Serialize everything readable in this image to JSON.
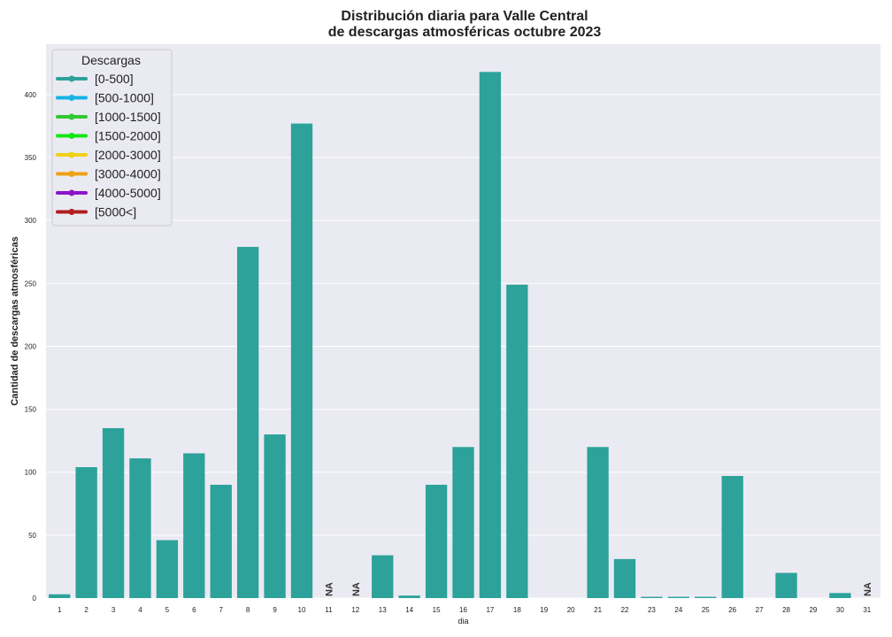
{
  "chart_data": {
    "type": "bar",
    "title_line1": "Distribución diaria para Valle Central",
    "title_line2": "de descargas atmosféricas octubre 2023",
    "xlabel": "dia",
    "ylabel": "Cantidad de descargas atmosféricas",
    "ylim": [
      0,
      440
    ],
    "yticks": [
      0,
      50,
      100,
      150,
      200,
      250,
      300,
      350,
      400
    ],
    "grid": true,
    "background": "#eaeaf2",
    "bar_color": "#2ca29a",
    "categories": [
      "1",
      "2",
      "3",
      "4",
      "5",
      "6",
      "7",
      "8",
      "9",
      "10",
      "11",
      "12",
      "13",
      "14",
      "15",
      "16",
      "17",
      "18",
      "19",
      "20",
      "21",
      "22",
      "23",
      "24",
      "25",
      "26",
      "27",
      "28",
      "29",
      "30",
      "31"
    ],
    "values": [
      3,
      104,
      135,
      111,
      46,
      115,
      90,
      279,
      130,
      377,
      null,
      null,
      34,
      2,
      90,
      120,
      418,
      249,
      0,
      0,
      120,
      31,
      1,
      1,
      1,
      97,
      0,
      20,
      0,
      4,
      null
    ],
    "na_label": "NA",
    "legend": {
      "title": "Descargas",
      "placement": "top-left",
      "entries": [
        {
          "label": "[0-500]",
          "color": "#2ca29a"
        },
        {
          "label": "[500-1000]",
          "color": "#14b4e6"
        },
        {
          "label": "[1000-1500]",
          "color": "#32c832"
        },
        {
          "label": "[1500-2000]",
          "color": "#14e614"
        },
        {
          "label": "[2000-3000]",
          "color": "#f0d214"
        },
        {
          "label": "[3000-4000]",
          "color": "#f0a014"
        },
        {
          "label": "[4000-5000]",
          "color": "#8c14c8"
        },
        {
          "label": "[5000<]",
          "color": "#b41e1e"
        }
      ]
    }
  }
}
